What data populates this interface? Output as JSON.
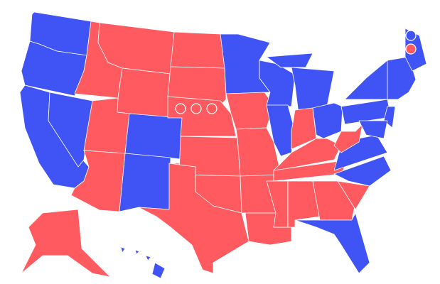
{
  "colors": {
    "D": "#4054f5",
    "R": "#fe5a5f",
    "border": "#ffffff"
  },
  "states": {
    "WA": "D",
    "OR": "D",
    "CA": "D",
    "NV": "D",
    "ID": "R",
    "MT": "R",
    "WY": "R",
    "UT": "R",
    "CO": "D",
    "AZ": "R",
    "NM": "D",
    "ND": "R",
    "SD": "R",
    "NE": "R",
    "KS": "R",
    "OK": "R",
    "TX": "R",
    "MN": "D",
    "IA": "R",
    "MO": "R",
    "AR": "R",
    "LA": "R",
    "WI": "D",
    "IL": "D",
    "MI": "D",
    "MI_UP": "D",
    "IN": "R",
    "OH": "D",
    "KY": "R",
    "TN": "R",
    "MS": "R",
    "AL": "R",
    "GA": "R",
    "FL": "D",
    "SC": "R",
    "NC": "D",
    "VA": "D",
    "WV": "R",
    "PA": "D",
    "NY": "D",
    "NEW_ENGLAND": "D",
    "ME": "D",
    "NJ": "D",
    "MD_DE": "D",
    "AK": "R",
    "HI": "D"
  },
  "district_markers": {
    "NE": [
      "R",
      "R",
      "R"
    ],
    "ME": [
      "D",
      "R"
    ]
  }
}
